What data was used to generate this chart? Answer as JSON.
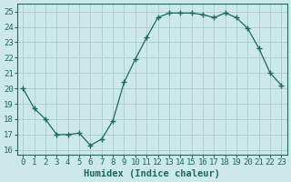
{
  "x": [
    0,
    1,
    2,
    3,
    4,
    5,
    6,
    7,
    8,
    9,
    10,
    11,
    12,
    13,
    14,
    15,
    16,
    17,
    18,
    19,
    20,
    21,
    22,
    23
  ],
  "y": [
    20,
    18.7,
    18.0,
    17.0,
    17.0,
    17.1,
    16.3,
    16.7,
    17.9,
    20.4,
    21.9,
    23.3,
    24.6,
    24.9,
    24.9,
    24.9,
    24.8,
    24.6,
    24.9,
    24.6,
    23.9,
    22.6,
    21.0,
    20.2
  ],
  "xlabel": "Humidex (Indice chaleur)",
  "ylabel": "",
  "xlim": [
    -0.5,
    23.5
  ],
  "ylim": [
    15.7,
    25.5
  ],
  "yticks": [
    16,
    17,
    18,
    19,
    20,
    21,
    22,
    23,
    24,
    25
  ],
  "xticks": [
    0,
    1,
    2,
    3,
    4,
    5,
    6,
    7,
    8,
    9,
    10,
    11,
    12,
    13,
    14,
    15,
    16,
    17,
    18,
    19,
    20,
    21,
    22,
    23
  ],
  "line_color": "#1a6b5a",
  "marker": "+",
  "marker_size": 4,
  "bg_color": "#cce8e8",
  "grid_color": "#aacccc",
  "label_fontsize": 7.5,
  "tick_fontsize": 6.5
}
